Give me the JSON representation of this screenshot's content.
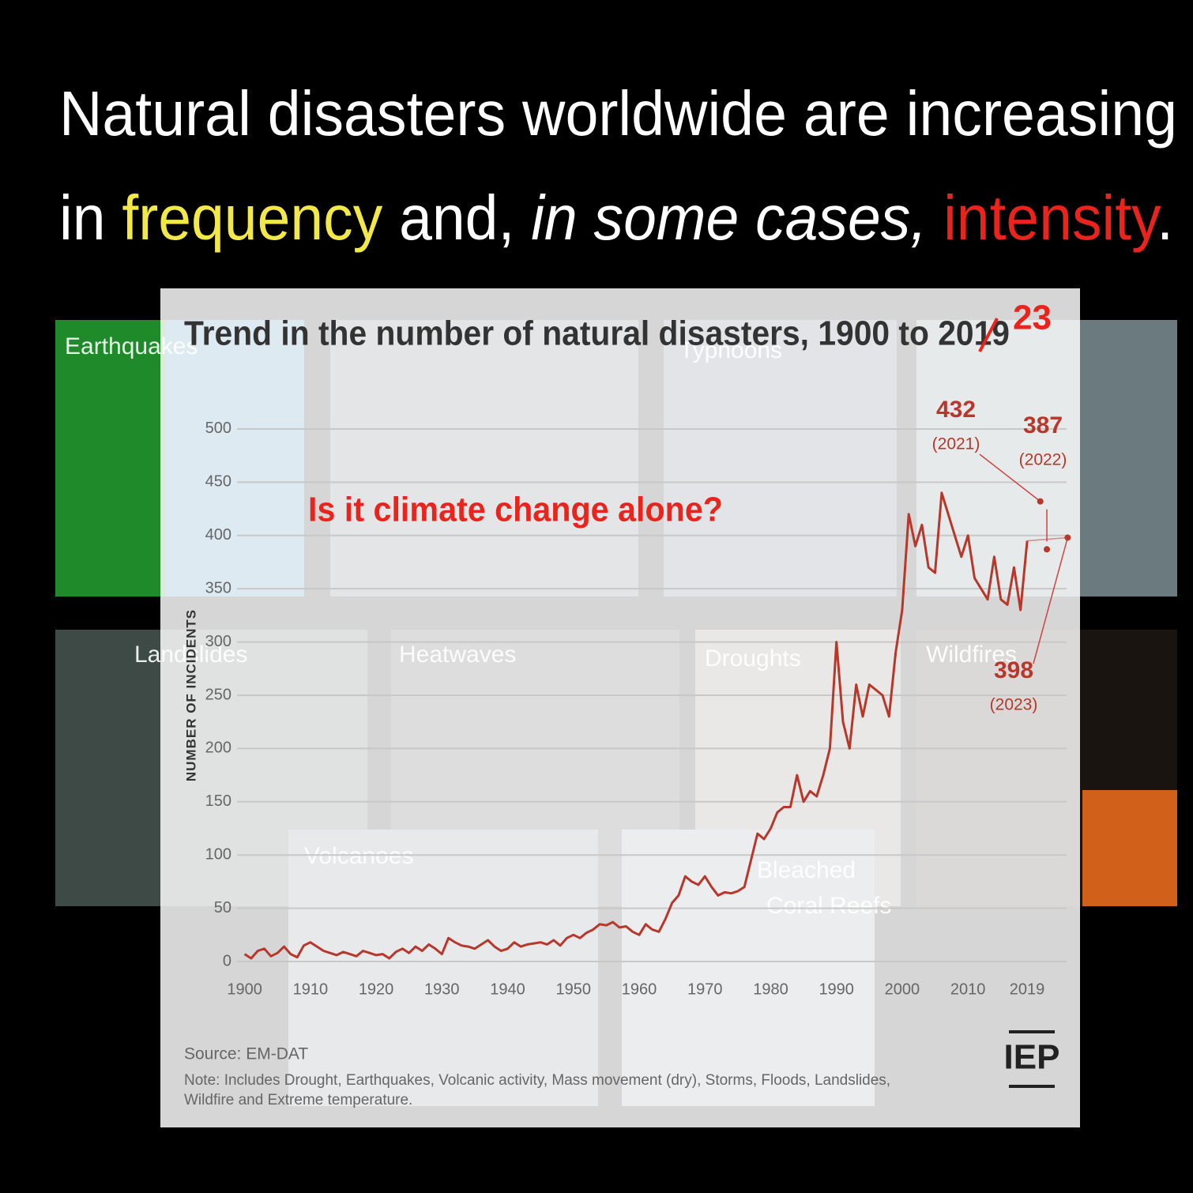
{
  "headline": {
    "line1": "Natural disasters worldwide are increasing",
    "line2": [
      {
        "text": "in ",
        "color": "#ffffff"
      },
      {
        "text": "frequency",
        "color": "#f2e84a"
      },
      {
        "text": " and, ",
        "color": "#ffffff"
      },
      {
        "text": "in some cases,",
        "color": "#ffffff",
        "italic": true
      },
      {
        "text": " ",
        "color": "#ffffff"
      },
      {
        "text": "intensity",
        "color": "#e8241c"
      },
      {
        "text": ".",
        "color": "#ffffff"
      }
    ]
  },
  "photo_labels": [
    "Earthquakes",
    "Typhoons",
    "Landslides",
    "Heatwaves",
    "Droughts",
    "Wildfires",
    "Volcanoes",
    [
      "Bleached",
      "Coral Reefs"
    ]
  ],
  "question": "Is it climate change alone?",
  "chart_data": {
    "type": "line",
    "title": "Trend in the number of natural disasters, 1900 to 2019",
    "title_correction": "23",
    "ylabel": "NUMBER OF INCIDENTS",
    "color": "#b8372b",
    "x": [
      1900,
      1901,
      1902,
      1903,
      1904,
      1905,
      1906,
      1907,
      1908,
      1909,
      1910,
      1911,
      1912,
      1913,
      1914,
      1915,
      1916,
      1917,
      1918,
      1919,
      1920,
      1921,
      1922,
      1923,
      1924,
      1925,
      1926,
      1927,
      1928,
      1929,
      1930,
      1931,
      1932,
      1933,
      1934,
      1935,
      1936,
      1937,
      1938,
      1939,
      1940,
      1941,
      1942,
      1943,
      1944,
      1945,
      1946,
      1947,
      1948,
      1949,
      1950,
      1951,
      1952,
      1953,
      1954,
      1955,
      1956,
      1957,
      1958,
      1959,
      1960,
      1961,
      1962,
      1963,
      1964,
      1965,
      1966,
      1967,
      1968,
      1969,
      1970,
      1971,
      1972,
      1973,
      1974,
      1975,
      1976,
      1977,
      1978,
      1979,
      1980,
      1981,
      1982,
      1983,
      1984,
      1985,
      1986,
      1987,
      1988,
      1989,
      1990,
      1991,
      1992,
      1993,
      1994,
      1995,
      1996,
      1997,
      1998,
      1999,
      2000,
      2001,
      2002,
      2003,
      2004,
      2005,
      2006,
      2007,
      2008,
      2009,
      2010,
      2011,
      2012,
      2013,
      2014,
      2015,
      2016,
      2017,
      2018,
      2019
    ],
    "values": [
      7,
      3,
      10,
      12,
      5,
      8,
      14,
      7,
      4,
      15,
      18,
      14,
      10,
      8,
      6,
      9,
      7,
      5,
      10,
      8,
      6,
      7,
      3,
      9,
      12,
      8,
      14,
      10,
      16,
      12,
      7,
      22,
      18,
      15,
      14,
      12,
      16,
      20,
      14,
      10,
      12,
      18,
      14,
      16,
      17,
      18,
      16,
      20,
      15,
      22,
      25,
      22,
      27,
      30,
      35,
      34,
      37,
      32,
      33,
      28,
      25,
      35,
      30,
      28,
      40,
      55,
      62,
      80,
      75,
      72,
      80,
      70,
      62,
      65,
      64,
      66,
      70,
      95,
      120,
      115,
      125,
      140,
      145,
      145,
      175,
      150,
      160,
      155,
      175,
      200,
      300,
      225,
      200,
      260,
      230,
      260,
      255,
      250,
      230,
      290,
      330,
      420,
      390,
      410,
      370,
      365,
      440,
      420,
      400,
      380,
      400,
      360,
      350,
      340,
      380,
      340,
      335,
      370,
      330,
      395
    ],
    "xlim": [
      1895,
      2025
    ],
    "ylim": [
      0,
      520
    ],
    "xticks": [
      1900,
      1910,
      1920,
      1930,
      1940,
      1950,
      1960,
      1970,
      1980,
      1990,
      2000,
      2010,
      2019
    ],
    "yticks": [
      0,
      50,
      100,
      150,
      200,
      250,
      300,
      350,
      400,
      450,
      500
    ],
    "grid": true,
    "annotations": [
      {
        "x": 2021,
        "x_label": "(2021)",
        "y": 432
      },
      {
        "x": 2022,
        "x_label": "(2022)",
        "y": 387
      },
      {
        "x": 2023,
        "x_label": "(2023)",
        "y": 398
      }
    ],
    "source": "Source: EM-DAT",
    "note": [
      "Note: Includes Drought, Earthquakes, Volcanic activity, Mass movement (dry), Storms, Floods, Landslides,",
      "Wildfire and Extreme temperature."
    ],
    "logo": "IEP"
  }
}
